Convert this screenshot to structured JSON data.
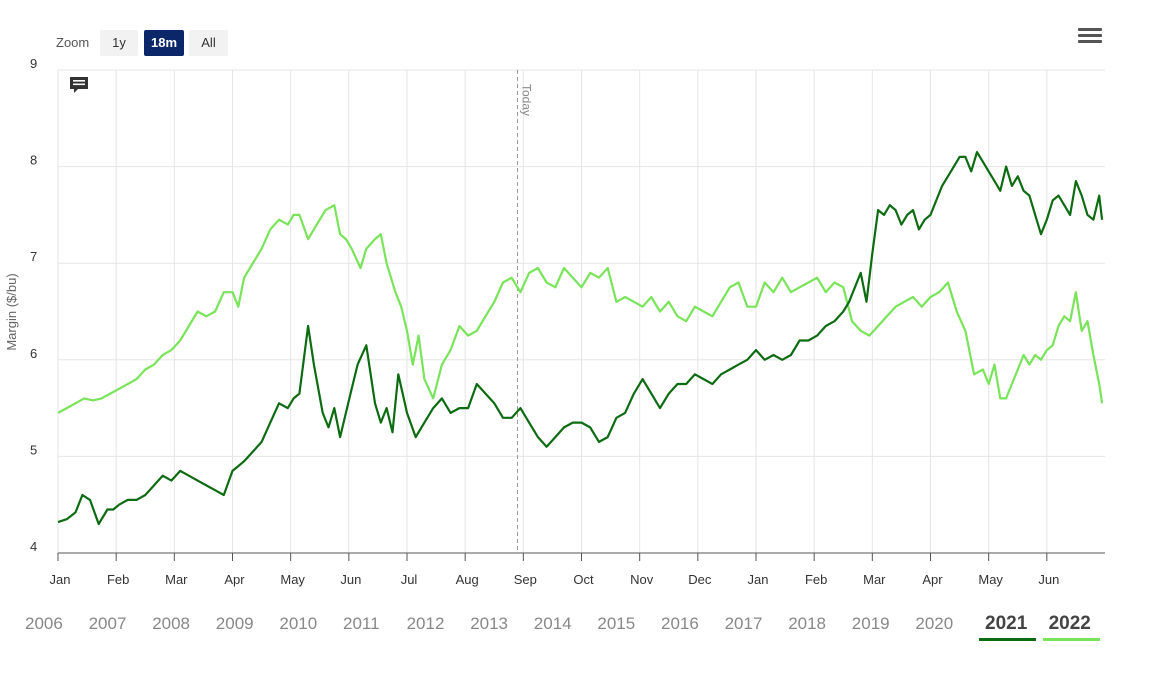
{
  "toolbar": {
    "zoom_label": "Zoom",
    "buttons": [
      {
        "label": "1y",
        "active": false
      },
      {
        "label": "18m",
        "active": true
      },
      {
        "label": "All",
        "active": false
      }
    ],
    "menu_icon": "hamburger-menu-icon",
    "comment_icon": "comment-icon"
  },
  "years": [
    "2006",
    "2007",
    "2008",
    "2009",
    "2010",
    "2011",
    "2012",
    "2013",
    "2014",
    "2015",
    "2016",
    "2017",
    "2018",
    "2019",
    "2020",
    "2021",
    "2022"
  ],
  "selected_years": [
    {
      "label": "2021",
      "color": "#0d6b12"
    },
    {
      "label": "2022",
      "color": "#79e35a"
    }
  ],
  "chart_data": {
    "type": "line",
    "ylabel": "Margin ($/bu)",
    "ylim": [
      4,
      9
    ],
    "yticks": [
      4,
      5,
      6,
      7,
      8,
      9
    ],
    "xlim": [
      0,
      18
    ],
    "x_tick_labels": [
      "Jan",
      "Feb",
      "Mar",
      "Apr",
      "May",
      "Jun",
      "Jul",
      "Aug",
      "Sep",
      "Oct",
      "Nov",
      "Dec",
      "Jan",
      "Feb",
      "Mar",
      "Apr",
      "May",
      "Jun"
    ],
    "grid": true,
    "today_label": "Today",
    "today_x": 7.9,
    "series": [
      {
        "name": "2021",
        "color": "#0d6b12",
        "x": [
          0,
          0.15,
          0.3,
          0.42,
          0.55,
          0.7,
          0.85,
          0.95,
          1.05,
          1.2,
          1.35,
          1.5,
          1.65,
          1.8,
          1.95,
          2.1,
          2.25,
          2.4,
          2.55,
          2.7,
          2.85,
          3.0,
          3.1,
          3.2,
          3.35,
          3.5,
          3.65,
          3.8,
          3.95,
          4.05,
          4.15,
          4.3,
          4.4,
          4.55,
          4.65,
          4.75,
          4.85,
          4.95,
          5.05,
          5.15,
          5.3,
          5.45,
          5.55,
          5.65,
          5.75,
          5.85,
          6.0,
          6.15,
          6.3,
          6.45,
          6.6,
          6.75,
          6.9,
          7.05,
          7.2,
          7.35,
          7.5,
          7.65,
          7.8,
          7.95,
          8.1,
          8.25,
          8.4,
          8.55,
          8.7,
          8.85,
          9.0,
          9.15,
          9.3,
          9.45,
          9.6,
          9.75,
          9.9,
          10.05,
          10.2,
          10.35,
          10.5,
          10.65,
          10.8,
          10.95,
          11.1,
          11.25,
          11.4,
          11.55,
          11.7,
          11.85,
          12.0,
          12.15,
          12.3,
          12.45,
          12.6,
          12.75,
          12.9,
          13.05,
          13.2,
          13.35,
          13.5,
          13.6,
          13.7,
          13.8,
          13.9,
          14.0,
          14.1,
          14.2,
          14.3,
          14.4,
          14.5,
          14.6,
          14.7,
          14.8,
          14.9,
          15.0,
          15.1,
          15.2,
          15.35,
          15.5,
          15.6,
          15.7,
          15.8,
          15.9,
          16.0,
          16.1,
          16.2,
          16.3,
          16.4,
          16.5,
          16.6,
          16.7,
          16.8,
          16.9,
          17.0,
          17.1,
          17.2,
          17.3,
          17.4,
          17.5,
          17.6,
          17.7,
          17.8,
          17.9,
          17.95
        ],
        "y": [
          4.32,
          4.35,
          4.42,
          4.6,
          4.55,
          4.3,
          4.45,
          4.45,
          4.5,
          4.55,
          4.55,
          4.6,
          4.7,
          4.8,
          4.75,
          4.85,
          4.8,
          4.75,
          4.7,
          4.65,
          4.6,
          4.85,
          4.9,
          4.95,
          5.05,
          5.15,
          5.35,
          5.55,
          5.5,
          5.6,
          5.65,
          6.35,
          5.95,
          5.45,
          5.3,
          5.5,
          5.2,
          5.45,
          5.7,
          5.95,
          6.15,
          5.55,
          5.35,
          5.5,
          5.25,
          5.85,
          5.45,
          5.2,
          5.35,
          5.5,
          5.6,
          5.45,
          5.5,
          5.5,
          5.75,
          5.65,
          5.55,
          5.4,
          5.4,
          5.5,
          5.35,
          5.2,
          5.1,
          5.2,
          5.3,
          5.35,
          5.35,
          5.3,
          5.15,
          5.2,
          5.4,
          5.45,
          5.65,
          5.8,
          5.65,
          5.5,
          5.65,
          5.75,
          5.75,
          5.85,
          5.8,
          5.75,
          5.85,
          5.9,
          5.95,
          6.0,
          6.1,
          6.0,
          6.05,
          6.0,
          6.05,
          6.2,
          6.2,
          6.25,
          6.35,
          6.4,
          6.5,
          6.6,
          6.75,
          6.9,
          6.6,
          7.1,
          7.55,
          7.5,
          7.6,
          7.55,
          7.4,
          7.5,
          7.55,
          7.35,
          7.45,
          7.5,
          7.65,
          7.8,
          7.95,
          8.1,
          8.1,
          7.95,
          8.15,
          8.05,
          7.95,
          7.85,
          7.75,
          8.0,
          7.8,
          7.9,
          7.75,
          7.7,
          7.5,
          7.3,
          7.45,
          7.65,
          7.7,
          7.6,
          7.5,
          7.85,
          7.7,
          7.5,
          7.45,
          7.7,
          7.45
        ]
      },
      {
        "name": "2022",
        "color": "#79e35a",
        "x": [
          0,
          0.15,
          0.3,
          0.45,
          0.6,
          0.75,
          0.9,
          1.05,
          1.2,
          1.35,
          1.5,
          1.65,
          1.8,
          1.95,
          2.1,
          2.25,
          2.4,
          2.55,
          2.7,
          2.85,
          3.0,
          3.1,
          3.2,
          3.35,
          3.5,
          3.65,
          3.8,
          3.95,
          4.05,
          4.15,
          4.3,
          4.45,
          4.6,
          4.75,
          4.85,
          4.95,
          5.05,
          5.2,
          5.3,
          5.45,
          5.55,
          5.65,
          5.8,
          5.9,
          6.0,
          6.1,
          6.2,
          6.3,
          6.45,
          6.6,
          6.75,
          6.9,
          7.05,
          7.2,
          7.35,
          7.5,
          7.65,
          7.8,
          7.95,
          8.1,
          8.25,
          8.4,
          8.55,
          8.7,
          8.85,
          9.0,
          9.15,
          9.3,
          9.45,
          9.6,
          9.75,
          9.9,
          10.05,
          10.2,
          10.35,
          10.5,
          10.65,
          10.8,
          10.95,
          11.1,
          11.25,
          11.4,
          11.55,
          11.7,
          11.85,
          12.0,
          12.15,
          12.3,
          12.45,
          12.6,
          12.75,
          12.9,
          13.05,
          13.2,
          13.35,
          13.5,
          13.65,
          13.8,
          13.95,
          14.1,
          14.25,
          14.4,
          14.55,
          14.7,
          14.85,
          15.0,
          15.15,
          15.3,
          15.45,
          15.6,
          15.75,
          15.9,
          16.0,
          16.1,
          16.2,
          16.3,
          16.4,
          16.5,
          16.6,
          16.7,
          16.8,
          16.9,
          17.0,
          17.1,
          17.2,
          17.3,
          17.4,
          17.5,
          17.6,
          17.7,
          17.8,
          17.9,
          17.95
        ],
        "y": [
          5.45,
          5.5,
          5.55,
          5.6,
          5.58,
          5.6,
          5.65,
          5.7,
          5.75,
          5.8,
          5.9,
          5.95,
          6.05,
          6.1,
          6.2,
          6.35,
          6.5,
          6.45,
          6.5,
          6.7,
          6.7,
          6.55,
          6.85,
          7.0,
          7.15,
          7.35,
          7.45,
          7.4,
          7.5,
          7.5,
          7.25,
          7.4,
          7.55,
          7.6,
          7.3,
          7.25,
          7.15,
          6.95,
          7.15,
          7.25,
          7.3,
          7.0,
          6.7,
          6.55,
          6.3,
          5.95,
          6.25,
          5.8,
          5.6,
          5.95,
          6.1,
          6.35,
          6.25,
          6.3,
          6.45,
          6.6,
          6.8,
          6.85,
          6.7,
          6.9,
          6.95,
          6.8,
          6.75,
          6.95,
          6.85,
          6.75,
          6.9,
          6.85,
          6.95,
          6.6,
          6.65,
          6.6,
          6.55,
          6.65,
          6.5,
          6.6,
          6.45,
          6.4,
          6.55,
          6.5,
          6.45,
          6.6,
          6.75,
          6.8,
          6.55,
          6.55,
          6.8,
          6.7,
          6.85,
          6.7,
          6.75,
          6.8,
          6.85,
          6.7,
          6.8,
          6.75,
          6.4,
          6.3,
          6.25,
          6.35,
          6.45,
          6.55,
          6.6,
          6.65,
          6.55,
          6.65,
          6.7,
          6.8,
          6.5,
          6.3,
          5.85,
          5.9,
          5.75,
          5.95,
          5.6,
          5.6,
          5.75,
          5.9,
          6.05,
          5.95,
          6.05,
          6.0,
          6.1,
          6.15,
          6.35,
          6.45,
          6.4,
          6.7,
          6.3,
          6.4,
          6.05,
          5.75,
          5.55
        ]
      }
    ]
  }
}
